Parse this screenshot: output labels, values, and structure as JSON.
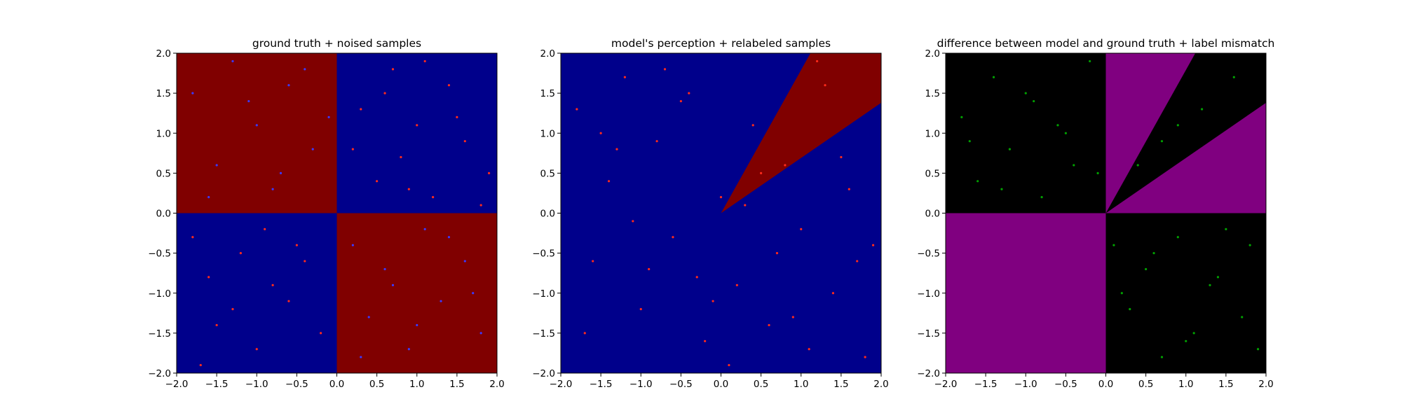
{
  "figure": {
    "background": "#ffffff"
  },
  "colors": {
    "blue_region": "#00008b",
    "red_region": "#800000",
    "purple_region": "#800080",
    "black_region": "#000000",
    "blue_points": "#3a3aff",
    "red_points": "#ff2a1a",
    "green_points": "#00a000"
  },
  "chart_data": [
    {
      "type": "scatter",
      "title": "ground truth + noised samples",
      "xlim": [
        -2.0,
        2.0
      ],
      "ylim": [
        -2.0,
        2.0
      ],
      "xticks": [
        "−2.0",
        "−1.5",
        "−1.0",
        "−0.5",
        "0.0",
        "0.5",
        "1.0",
        "1.5",
        "2.0"
      ],
      "yticks": [
        "−2.0",
        "−1.5",
        "−1.0",
        "−0.5",
        "0.0",
        "0.5",
        "1.0",
        "1.5",
        "2.0"
      ],
      "grid": false,
      "background_regions": [
        {
          "region": "x<0, y>0",
          "color": "red_region"
        },
        {
          "region": "x>0, y>0",
          "color": "blue_region"
        },
        {
          "region": "x<0, y<0",
          "color": "blue_region"
        },
        {
          "region": "x>0, y<0",
          "color": "red_region"
        }
      ],
      "series": [
        {
          "color": "red_points",
          "x": [
            -1.8,
            -1.6,
            -1.5,
            -1.2,
            -1.0,
            -0.9,
            -0.6,
            -0.4,
            -0.2,
            0.3,
            0.5,
            0.7,
            0.8,
            1.0,
            1.2,
            1.4,
            1.6,
            1.9,
            -1.7,
            -1.3,
            -0.8,
            -0.5,
            0.2,
            0.6,
            0.9,
            1.1,
            1.5,
            1.8
          ],
          "y": [
            -0.3,
            -0.8,
            -1.4,
            -0.5,
            -1.7,
            -0.2,
            -1.1,
            -0.6,
            -1.5,
            1.3,
            0.4,
            1.8,
            0.7,
            1.1,
            0.2,
            1.6,
            0.9,
            0.5,
            -1.9,
            -1.2,
            -0.9,
            -0.4,
            0.8,
            1.5,
            0.3,
            1.9,
            1.2,
            0.1
          ]
        },
        {
          "color": "blue_points",
          "x": [
            -1.8,
            -1.5,
            -1.3,
            -1.0,
            -0.8,
            -0.6,
            -0.3,
            -0.1,
            0.2,
            0.4,
            0.7,
            0.9,
            1.1,
            1.3,
            1.6,
            1.8,
            -1.6,
            -1.1,
            -0.7,
            -0.4,
            0.3,
            0.6,
            1.0,
            1.4,
            1.7
          ],
          "y": [
            1.5,
            0.6,
            1.9,
            1.1,
            0.3,
            1.6,
            0.8,
            1.2,
            -0.4,
            -1.3,
            -0.9,
            -1.7,
            -0.2,
            -1.1,
            -0.6,
            -1.5,
            0.2,
            1.4,
            0.5,
            1.8,
            -1.8,
            -0.7,
            -1.4,
            -0.3,
            -1.0
          ]
        }
      ]
    },
    {
      "type": "scatter",
      "title": "model's perception + relabeled samples",
      "xlim": [
        -2.0,
        2.0
      ],
      "ylim": [
        -2.0,
        2.0
      ],
      "xticks": [
        "−2.0",
        "−1.5",
        "−1.0",
        "−0.5",
        "0.0",
        "0.5",
        "1.0",
        "1.5",
        "2.0"
      ],
      "yticks": [
        "−2.0",
        "−1.5",
        "−1.0",
        "−0.5",
        "0.0",
        "0.5",
        "1.0",
        "1.5",
        "2.0"
      ],
      "grid": false,
      "background_regions": [
        {
          "region": "everywhere else",
          "color": "blue_region"
        },
        {
          "region": "wedge from origin between slope 0.69 and slope 1.79 (x>0)",
          "color": "red_region"
        }
      ],
      "series": [
        {
          "color": "red_points",
          "x": [
            -1.8,
            -1.6,
            -1.4,
            -1.2,
            -1.0,
            -0.8,
            -0.6,
            -0.4,
            -0.2,
            0.0,
            0.2,
            0.4,
            0.6,
            0.8,
            1.0,
            1.2,
            1.4,
            1.6,
            1.8,
            -1.7,
            -1.3,
            -0.9,
            -0.5,
            -0.1,
            0.3,
            0.7,
            1.1,
            1.5,
            1.9,
            -1.5,
            -1.1,
            -0.7,
            -0.3,
            0.1,
            0.5,
            0.9,
            1.3,
            1.7
          ],
          "y": [
            1.3,
            -0.6,
            0.4,
            1.7,
            -1.2,
            0.9,
            -0.3,
            1.5,
            -1.6,
            0.2,
            -0.9,
            1.1,
            -1.4,
            0.6,
            -0.2,
            1.9,
            -1.0,
            0.3,
            -1.8,
            -1.5,
            0.8,
            -0.7,
            1.4,
            -1.1,
            0.1,
            -0.5,
            -1.7,
            0.7,
            -0.4,
            1.0,
            -0.1,
            1.8,
            -0.8,
            -1.9,
            0.5,
            -1.3,
            1.6,
            -0.6
          ]
        }
      ]
    },
    {
      "type": "scatter",
      "title": "difference between model and ground truth + label mismatch",
      "xlim": [
        -2.0,
        2.0
      ],
      "ylim": [
        -2.0,
        2.0
      ],
      "xticks": [
        "−2.0",
        "−1.5",
        "−1.0",
        "−0.5",
        "0.0",
        "0.5",
        "1.0",
        "1.5",
        "2.0"
      ],
      "yticks": [
        "−2.0",
        "−1.5",
        "−1.0",
        "−0.5",
        "0.0",
        "0.5",
        "1.0",
        "1.5",
        "2.0"
      ],
      "grid": false,
      "background_regions": [
        {
          "region": "x<0, y>0",
          "color": "black_region"
        },
        {
          "region": "x<0, y<0",
          "color": "purple_region"
        },
        {
          "region": "x>0, y<0",
          "color": "black_region"
        },
        {
          "region": "x>0, y>0 below slope 0.69 and above slope 1.79",
          "color": "purple_region"
        },
        {
          "region": "x>0, y>0 between slope 0.69 and slope 1.79",
          "color": "black_region"
        }
      ],
      "series": [
        {
          "color": "green_points",
          "x": [
            -1.8,
            -1.6,
            -1.4,
            -1.2,
            -1.0,
            -0.8,
            -0.6,
            -0.4,
            -0.2,
            -1.7,
            -1.3,
            -0.9,
            -0.5,
            -0.1,
            0.1,
            0.3,
            0.5,
            0.7,
            0.9,
            1.1,
            1.3,
            1.5,
            1.7,
            1.9,
            0.2,
            0.6,
            1.0,
            1.4,
            1.8,
            0.9,
            1.2,
            1.6,
            0.4,
            0.7
          ],
          "y": [
            1.2,
            0.4,
            1.7,
            0.8,
            1.5,
            0.2,
            1.1,
            0.6,
            1.9,
            0.9,
            0.3,
            1.4,
            1.0,
            0.5,
            -0.4,
            -1.2,
            -0.7,
            -1.8,
            -0.3,
            -1.5,
            -0.9,
            -0.2,
            -1.3,
            -1.7,
            -1.0,
            -0.5,
            -1.6,
            -0.8,
            -0.4,
            1.1,
            1.3,
            1.7,
            0.6,
            0.9
          ]
        }
      ]
    }
  ]
}
